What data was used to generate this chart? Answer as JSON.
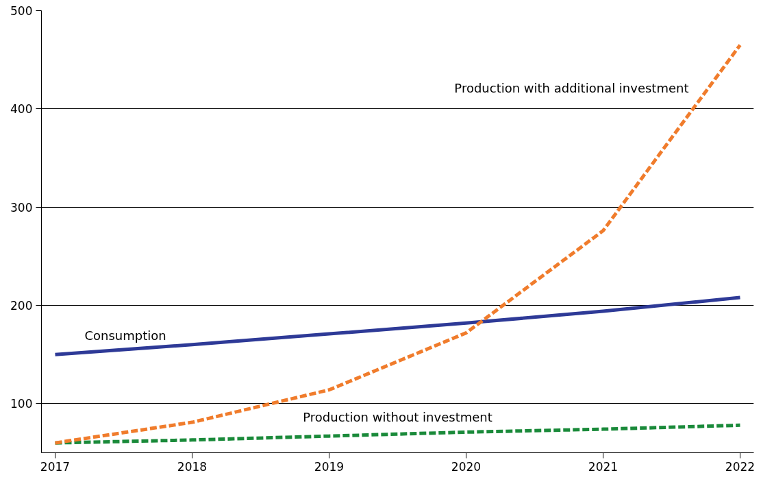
{
  "chart_data": {
    "type": "line",
    "x": [
      2017,
      2018,
      2019,
      2020,
      2021,
      2022
    ],
    "xlim": [
      2016.9,
      2022.1
    ],
    "xticks": [
      2017,
      2018,
      2019,
      2020,
      2021,
      2022
    ],
    "ylim": [
      50,
      500
    ],
    "yticks": [
      100,
      200,
      300,
      400,
      500
    ],
    "grid": "y",
    "legend": false,
    "series": [
      {
        "name": "Consumption",
        "color": "#2e3a97",
        "line_style": "solid",
        "values": [
          150,
          160,
          171,
          182,
          194,
          208
        ]
      },
      {
        "name": "Production without investment",
        "color": "#1a8a3a",
        "line_style": "dashed",
        "values": [
          60,
          63,
          67,
          71,
          74,
          78
        ]
      },
      {
        "name": "Production with additional investment",
        "color": "#f07c2c",
        "line_style": "dashed",
        "values": [
          60,
          81,
          114,
          172,
          276,
          465
        ]
      }
    ]
  }
}
